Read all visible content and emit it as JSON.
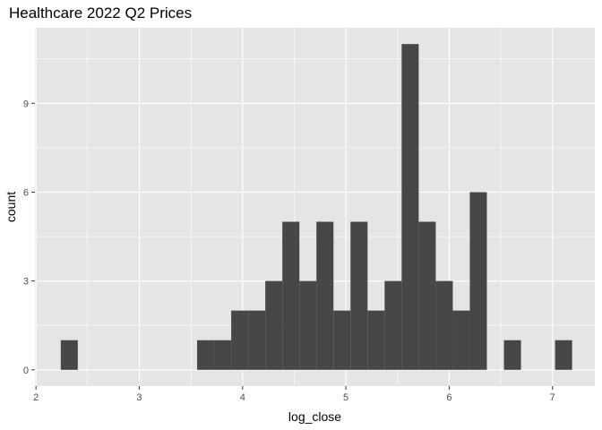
{
  "chart_data": {
    "type": "bar",
    "title": "Healthcare 2022 Q2 Prices",
    "xlabel": "log_close",
    "ylabel": "count",
    "xlim": [
      1.99,
      7.41
    ],
    "ylim": [
      -0.55,
      11.55
    ],
    "x_ticks": [
      2,
      3,
      4,
      5,
      6,
      7
    ],
    "x_tick_labels": [
      "2",
      "3",
      "4",
      "5",
      "6",
      "7"
    ],
    "y_ticks": [
      0,
      3,
      6,
      9
    ],
    "y_tick_labels": [
      "0",
      "3",
      "6",
      "9"
    ],
    "bin_width": 0.165,
    "bins": [
      {
        "x0": 2.24,
        "x1": 2.405,
        "count": 1
      },
      {
        "x0": 3.56,
        "x1": 3.725,
        "count": 1
      },
      {
        "x0": 3.725,
        "x1": 3.89,
        "count": 1
      },
      {
        "x0": 3.89,
        "x1": 4.055,
        "count": 2
      },
      {
        "x0": 4.055,
        "x1": 4.22,
        "count": 2
      },
      {
        "x0": 4.22,
        "x1": 4.385,
        "count": 3
      },
      {
        "x0": 4.385,
        "x1": 4.55,
        "count": 5
      },
      {
        "x0": 4.55,
        "x1": 4.715,
        "count": 3
      },
      {
        "x0": 4.715,
        "x1": 4.88,
        "count": 5
      },
      {
        "x0": 4.88,
        "x1": 5.045,
        "count": 2
      },
      {
        "x0": 5.045,
        "x1": 5.21,
        "count": 5
      },
      {
        "x0": 5.21,
        "x1": 5.375,
        "count": 2
      },
      {
        "x0": 5.375,
        "x1": 5.54,
        "count": 3
      },
      {
        "x0": 5.54,
        "x1": 5.705,
        "count": 11
      },
      {
        "x0": 5.705,
        "x1": 5.87,
        "count": 5
      },
      {
        "x0": 5.87,
        "x1": 6.035,
        "count": 3
      },
      {
        "x0": 6.035,
        "x1": 6.2,
        "count": 2
      },
      {
        "x0": 6.2,
        "x1": 6.365,
        "count": 6
      },
      {
        "x0": 6.53,
        "x1": 6.695,
        "count": 1
      },
      {
        "x0": 7.025,
        "x1": 7.19,
        "count": 1
      }
    ],
    "grid": true,
    "legend": "none",
    "colors": {
      "panel_background": "#e5e5e5",
      "grid_major": "#ffffff",
      "bar_fill": "#474747",
      "tick_text": "#4d4d4d",
      "tick_mark": "#333333"
    }
  }
}
